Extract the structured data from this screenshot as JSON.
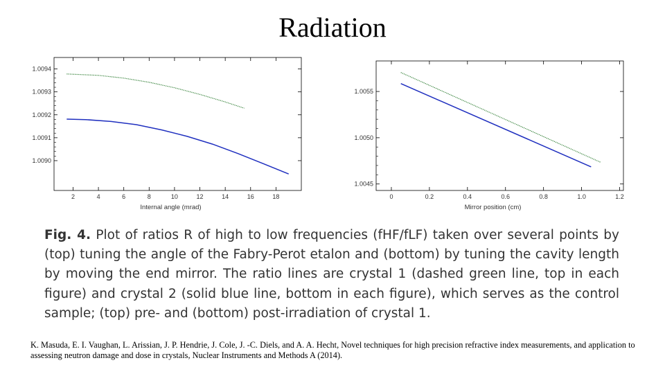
{
  "title": "Radiation",
  "chart_data": [
    {
      "type": "line",
      "xlabel": "Internal angle (mrad)",
      "ylabel": "",
      "xlim": [
        0.5,
        20
      ],
      "ylim": [
        1.00887,
        1.00945
      ],
      "xticks": [
        2,
        4,
        6,
        8,
        10,
        12,
        14,
        16,
        18
      ],
      "xtick_labels": [
        "2",
        "4",
        "6",
        "8",
        "10",
        "12",
        "14",
        "16",
        "18"
      ],
      "yticks": [
        1.009,
        1.0091,
        1.0092,
        1.0093,
        1.0094
      ],
      "ytick_labels": [
        "1.0090",
        "1.0091",
        "1.0092",
        "1.0093",
        "1.0094"
      ],
      "series": [
        {
          "style": "dotted",
          "color": "#2e7d32",
          "x": [
            1.5,
            4,
            6,
            8,
            10,
            12,
            14,
            15.5
          ],
          "y": [
            1.009378,
            1.009372,
            1.00936,
            1.009342,
            1.009318,
            1.009289,
            1.009256,
            1.009229
          ]
        },
        {
          "style": "solid",
          "color": "#1f2fbf",
          "x": [
            1.5,
            3,
            5,
            7,
            9,
            11,
            13,
            15,
            17,
            19
          ],
          "y": [
            1.009181,
            1.009179,
            1.009171,
            1.009157,
            1.009134,
            1.009106,
            1.009072,
            1.009031,
            1.008987,
            1.008942
          ]
        }
      ]
    },
    {
      "type": "line",
      "xlabel": "Mirror position (cm)",
      "ylabel": "",
      "xlim": [
        -0.08,
        1.22
      ],
      "ylim": [
        1.00443,
        1.00583
      ],
      "xticks": [
        0,
        0.2,
        0.4,
        0.6,
        0.8,
        1.0,
        1.2
      ],
      "xtick_labels": [
        "0",
        "0.2",
        "0.4",
        "0.6",
        "0.8",
        "1.0",
        "1.2"
      ],
      "yticks": [
        1.0045,
        1.005,
        1.0055
      ],
      "ytick_labels": [
        "1.0045",
        "1.0050",
        "1.0055"
      ],
      "series": [
        {
          "style": "dotted",
          "color": "#2e7d32",
          "x": [
            0.05,
            1.1
          ],
          "y": [
            1.005705,
            1.004735
          ]
        },
        {
          "style": "solid",
          "color": "#1f2fbf",
          "x": [
            0.05,
            1.05
          ],
          "y": [
            1.005585,
            1.004685
          ]
        }
      ]
    }
  ],
  "caption": {
    "fig_label": "Fig. 4.",
    "text": "Plot of ratios R of high to low frequencies (fHF/fLF) taken over several points by (top) tuning the angle of the Fabry-Perot etalon and (bottom) by tuning the cavity length by moving the end mirror. The ratio lines are crystal 1 (dashed green line, top in each figure) and crystal 2 (solid blue line, bottom in each figure), which serves as the control sample; (top) pre- and (bottom) post-irradiation of crystal 1."
  },
  "citation": "K. Masuda, E. I. Vaughan, L. Arissian, J. P. Hendrie, J. Cole, J. -C. Diels, and A. A. Hecht, Novel techniques for high precision refractive index measurements, and application to assessing neutron damage and dose in crystals, Nuclear Instruments and Methods A (2014)."
}
